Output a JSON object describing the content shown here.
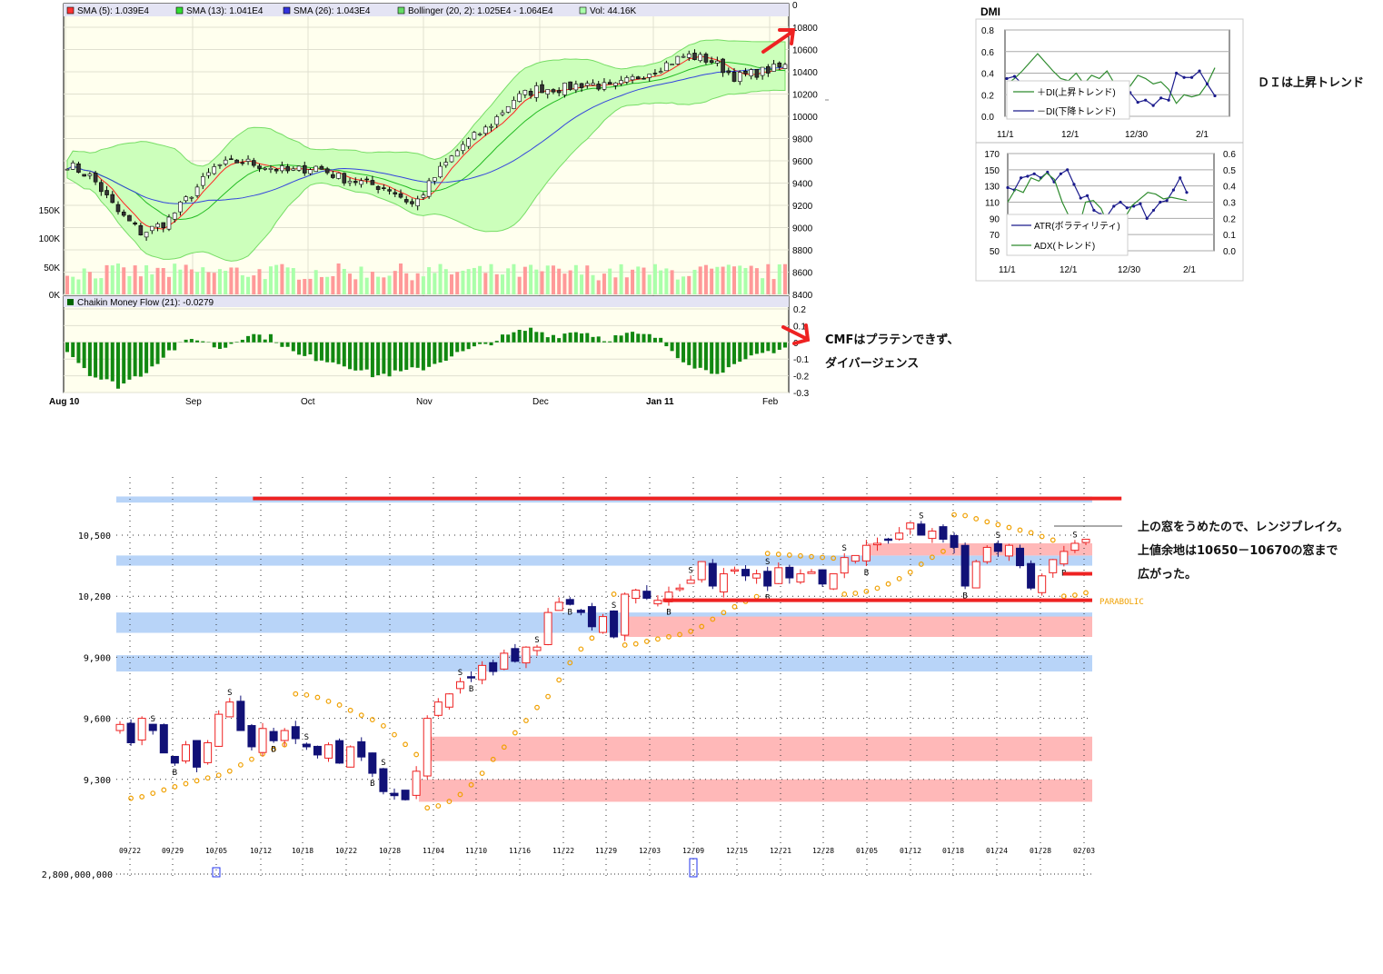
{
  "chart_data": [
    {
      "id": "main",
      "type": "candlestick",
      "legend": [
        "SMA (5): 1.039E4",
        "SMA (13): 1.041E4",
        "SMA (26): 1.043E4",
        "Bollinger (20, 2): 1.025E4 - 1.064E4",
        "Vol: 44.16K"
      ],
      "legend_colors": [
        "#ff3333",
        "#33dd33",
        "#3333dd",
        "#66dd66",
        "#aaffaa"
      ],
      "price_ticks": [
        10800,
        10600,
        10400,
        10200,
        10000,
        9800,
        9600,
        9400,
        9200,
        9000,
        8800,
        8600,
        8400
      ],
      "top_tick": "0",
      "volume_ticks": [
        "150K",
        "100K",
        "50K",
        "0K"
      ],
      "ylim": [
        8400,
        10800
      ],
      "x_labels": [
        "Aug 10",
        "Sep",
        "Oct",
        "Nov",
        "Dec",
        "Jan 11",
        "Feb"
      ],
      "weekly_closes": [
        9570,
        9450,
        9150,
        8950,
        9050,
        9300,
        9550,
        9600,
        9550,
        9500,
        9550,
        9450,
        9400,
        9350,
        9200,
        9500,
        9750,
        9900,
        10150,
        10250,
        10250,
        10300,
        10250,
        10350,
        10450,
        10550,
        10500,
        10350,
        10400,
        10450
      ]
    },
    {
      "id": "cmf",
      "type": "bar",
      "title": "Chaikin Money Flow (21): -0.0279",
      "ticks": [
        "0.2",
        "0.1",
        "0",
        "-0.1",
        "-0.2",
        "-0.3"
      ],
      "ylim": [
        -0.3,
        0.2
      ],
      "weekly_values": [
        -0.05,
        -0.2,
        -0.26,
        -0.18,
        -0.05,
        0.03,
        -0.04,
        0.05,
        0.03,
        -0.08,
        -0.1,
        -0.14,
        -0.2,
        -0.18,
        -0.15,
        -0.08,
        -0.03,
        0.03,
        0.08,
        0.04,
        0.07,
        0.02,
        0.05,
        0.03,
        -0.1,
        -0.18,
        -0.15,
        -0.07,
        -0.03
      ]
    },
    {
      "id": "dmi",
      "type": "line",
      "title": "DMI",
      "yticks": [
        "0.8",
        "0.6",
        "0.4",
        "0.2",
        "0.0"
      ],
      "ylim": [
        0,
        0.8
      ],
      "x_labels": [
        "11/1",
        "12/1",
        "12/30",
        "2/1"
      ],
      "series": [
        {
          "name": "＋DI(上昇トレンド)",
          "color": "#2e8b2e",
          "values": [
            0.3,
            0.35,
            0.42,
            0.5,
            0.58,
            0.5,
            0.42,
            0.35,
            0.33,
            0.4,
            0.3,
            0.38,
            0.35,
            0.42,
            0.3,
            0.25,
            0.28,
            0.38,
            0.35,
            0.3,
            0.32,
            0.25,
            0.12,
            0.2,
            0.18,
            0.2,
            0.3,
            0.45
          ]
        },
        {
          "name": "－DI(下降トレンド)",
          "color": "#1a1a8c",
          "values": [
            0.35,
            0.37,
            0.3,
            0.25,
            0.2,
            0.2,
            0.22,
            0.25,
            0.28,
            0.22,
            0.25,
            0.22,
            0.2,
            0.22,
            0.25,
            0.2,
            0.22,
            0.13,
            0.15,
            0.1,
            0.17,
            0.15,
            0.4,
            0.36,
            0.36,
            0.42,
            0.3,
            0.19
          ]
        }
      ]
    },
    {
      "id": "atr-adx",
      "type": "line",
      "yticks_left": [
        "170",
        "150",
        "130",
        "110",
        "90",
        "70",
        "50"
      ],
      "yticks_right": [
        "0.6",
        "0.5",
        "0.4",
        "0.3",
        "0.2",
        "0.1",
        "0.0"
      ],
      "x_labels": [
        "11/1",
        "12/1",
        "12/30",
        "2/1"
      ],
      "series": [
        {
          "name": "ATR(ボラティリティ)",
          "color": "#1a1a8c",
          "axis": "left",
          "values": [
            128,
            125,
            140,
            142,
            145,
            140,
            147,
            135,
            145,
            150,
            132,
            115,
            118,
            100,
            95,
            93,
            105,
            110,
            103,
            105,
            108,
            90,
            100,
            110,
            112,
            125,
            140,
            122
          ]
        },
        {
          "name": "ADX(トレンド)",
          "color": "#2e8b2e",
          "axis": "right",
          "values": [
            0.3,
            0.38,
            0.36,
            0.45,
            0.43,
            0.48,
            0.44,
            0.3,
            0.2,
            0.12,
            0.3,
            0.31,
            0.26,
            0.15,
            0.12,
            0.2,
            0.28,
            0.32,
            0.36,
            0.35,
            0.32,
            0.33,
            0.32,
            0.31
          ]
        }
      ]
    },
    {
      "id": "range",
      "type": "candlestick",
      "yticks": [
        "10,500",
        "10,200",
        "9,900",
        "9,600",
        "9,300"
      ],
      "ylim": [
        9150,
        10700
      ],
      "x_labels": [
        "09/22",
        "09/29",
        "10/05",
        "10/12",
        "10/18",
        "10/22",
        "10/28",
        "11/04",
        "11/10",
        "11/16",
        "11/22",
        "11/29",
        "12/03",
        "12/09",
        "12/15",
        "12/21",
        "12/28",
        "01/05",
        "01/12",
        "01/18",
        "01/24",
        "01/28",
        "02/03"
      ],
      "closes": [
        9570,
        9480,
        9600,
        9540,
        9430,
        9380,
        9470,
        9360,
        9480,
        9620,
        9680,
        9540,
        9460,
        9550,
        9490,
        9540,
        9500,
        9460,
        9420,
        9470,
        9380,
        9460,
        9410,
        9330,
        9240,
        9220,
        9200,
        9340,
        9600,
        9680,
        9720,
        9780,
        9800,
        9860,
        9830,
        9920,
        9880,
        9950,
        9950,
        10120,
        10170,
        10160,
        10120,
        10050,
        10100,
        10000,
        10210,
        10230,
        10190,
        10180,
        10220,
        10240,
        10280,
        10370,
        10250,
        10310,
        10330,
        10300,
        10310,
        10250,
        10340,
        10290,
        10310,
        10320,
        10260,
        10310,
        10390,
        10400,
        10450,
        10460,
        10480,
        10510,
        10560,
        10500,
        10520,
        10480,
        10440,
        10250,
        10370,
        10440,
        10420,
        10450,
        10350,
        10240,
        10300,
        10380,
        10420,
        10460,
        10480
      ],
      "zones": [
        {
          "kind": "resistance",
          "hi": 10690,
          "lo": 10660,
          "from": 0
        },
        {
          "kind": "resistance",
          "hi": 10400,
          "lo": 10350,
          "from": 0
        },
        {
          "kind": "resistance",
          "hi": 10120,
          "lo": 10020,
          "from": 0
        },
        {
          "kind": "resistance",
          "hi": 9910,
          "lo": 9830,
          "from": 0
        },
        {
          "kind": "support",
          "hi": 10100,
          "lo": 10000,
          "from": 0.52
        },
        {
          "kind": "support",
          "hi": 9510,
          "lo": 9390,
          "from": 0.32
        },
        {
          "kind": "support",
          "hi": 9300,
          "lo": 9190,
          "from": 0.31
        },
        {
          "kind": "support",
          "hi": 10460,
          "lo": 10400,
          "from": 0.77
        }
      ],
      "lines": [
        {
          "price": 10680,
          "from": 0.14,
          "to": 1.03
        },
        {
          "price": 10180,
          "from": 0.56,
          "to": 1.0
        },
        {
          "price": 10310,
          "from": 0.97,
          "to": 1.0
        }
      ],
      "parabolic_label": "PARABOLIC",
      "volume_label": "2,800,000,000"
    }
  ],
  "annotations": {
    "cmf_note_1": "CMFはプラテンできず、",
    "cmf_note_2": "ダイバージェンス",
    "di_note": "ＤＩは上昇トレンド",
    "range_note_1": "上の窓をうめたので、レンジブレイク。",
    "range_note_2": "上値余地は10650－10670の窓まで",
    "range_note_3": "広がった。"
  }
}
